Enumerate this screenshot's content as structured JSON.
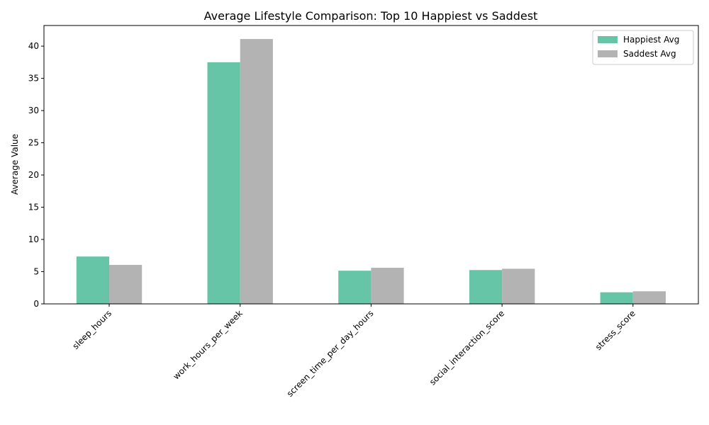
{
  "chart_data": {
    "type": "bar",
    "title": "Average Lifestyle Comparison: Top 10 Happiest vs Saddest",
    "xlabel": "",
    "ylabel": "Average Value",
    "ylim": [
      0,
      43.2
    ],
    "yticks": [
      0,
      5,
      10,
      15,
      20,
      25,
      30,
      35,
      40
    ],
    "categories": [
      "sleep_hours",
      "work_hours_per_week",
      "screen_time_per_day_hours",
      "social_interaction_score",
      "stress_score"
    ],
    "series": [
      {
        "name": "Happiest Avg",
        "color": "#66c5a6",
        "values": [
          7.35,
          37.5,
          5.15,
          5.25,
          1.8
        ]
      },
      {
        "name": "Saddest Avg",
        "color": "#b3b3b3",
        "values": [
          6.05,
          41.1,
          5.6,
          5.45,
          1.95
        ]
      }
    ],
    "legend": "top-right",
    "grid": false
  }
}
